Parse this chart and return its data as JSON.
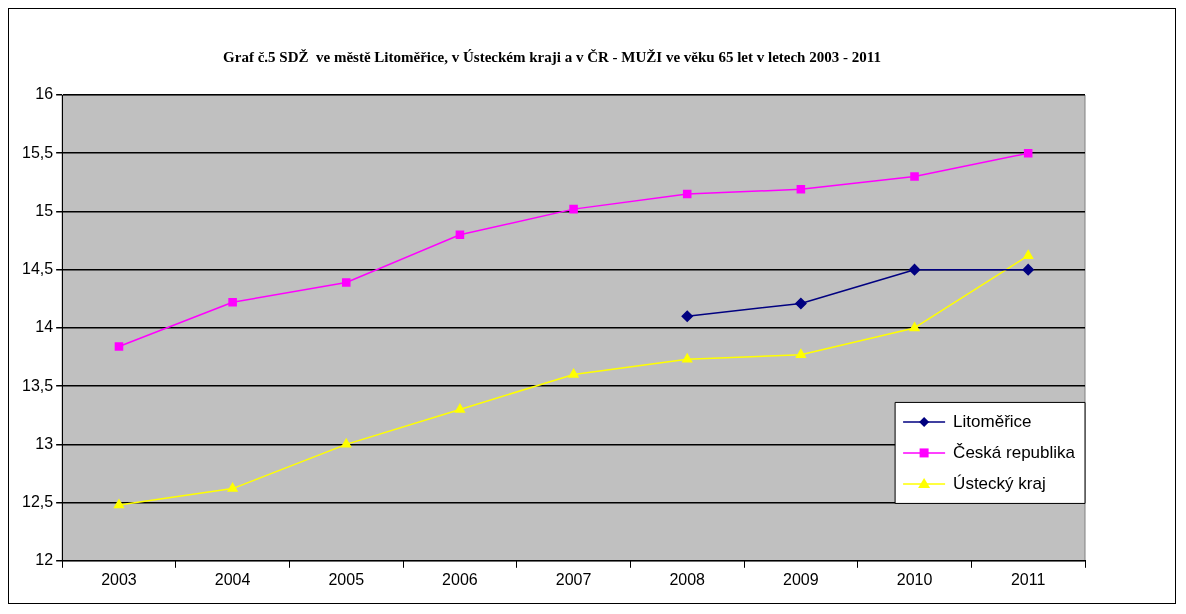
{
  "chart_data": {
    "type": "line",
    "title": "Graf č.5 SDŽ  ve městě Litoměřice, v Ústeckém kraji a v ČR - MUŽI ve věku 65 let v letech 2003 - 2011",
    "categories": [
      "2003",
      "2004",
      "2005",
      "2006",
      "2007",
      "2008",
      "2009",
      "2010",
      "2011"
    ],
    "series": [
      {
        "name": "Litoměřice",
        "color": "#000080",
        "marker": "diamond",
        "values": [
          null,
          null,
          null,
          null,
          null,
          14.1,
          14.21,
          14.5,
          14.5
        ]
      },
      {
        "name": "Česká republika",
        "color": "#ff00ff",
        "marker": "square",
        "values": [
          13.84,
          14.22,
          14.39,
          14.8,
          15.02,
          15.15,
          15.19,
          15.3,
          15.5
        ]
      },
      {
        "name": "Ústecký kraj",
        "color": "#ffff00",
        "marker": "triangle",
        "values": [
          12.48,
          12.62,
          13.0,
          13.3,
          13.6,
          13.73,
          13.77,
          14.0,
          14.62
        ]
      }
    ],
    "ylim": [
      12,
      16
    ],
    "yticks": [
      12,
      {
        "value": 12.5,
        "label": "12,5"
      },
      13,
      {
        "value": 13.5,
        "label": "13,5"
      },
      14,
      {
        "value": 14.5,
        "label": "14,5"
      },
      15,
      {
        "value": 15.5,
        "label": "15,5"
      },
      16
    ],
    "grid": "y",
    "legend": "right"
  }
}
